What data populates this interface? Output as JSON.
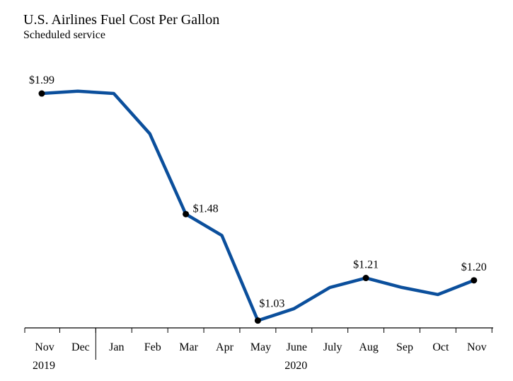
{
  "chart_data": {
    "type": "line",
    "title": "U.S. Airlines Fuel Cost Per Gallon",
    "subtitle": "Scheduled service",
    "xlabel": "",
    "ylabel": "",
    "categories": [
      "Nov",
      "Dec",
      "Jan",
      "Feb",
      "Mar",
      "Apr",
      "May",
      "June",
      "July",
      "Aug",
      "Sep",
      "Oct",
      "Nov"
    ],
    "year_labels": [
      {
        "text": "2019",
        "category": 0
      },
      {
        "text": "2020",
        "category": 7
      }
    ],
    "year_divider_after": 1,
    "series": [
      {
        "color": "#0b4f9c",
        "values": [
          1.99,
          2.0,
          1.99,
          1.82,
          1.48,
          1.39,
          1.03,
          1.08,
          1.17,
          1.21,
          1.17,
          1.14,
          1.2
        ]
      }
    ],
    "data_labels": [
      {
        "index": 0,
        "text": "$1.99"
      },
      {
        "index": 4,
        "text": "$1.48"
      },
      {
        "index": 6,
        "text": "$1.03"
      },
      {
        "index": 9,
        "text": "$1.21"
      },
      {
        "index": 12,
        "text": "$1.20"
      }
    ],
    "ylim": [
      0.99,
      2.05
    ],
    "grid": false,
    "legend": "none"
  }
}
